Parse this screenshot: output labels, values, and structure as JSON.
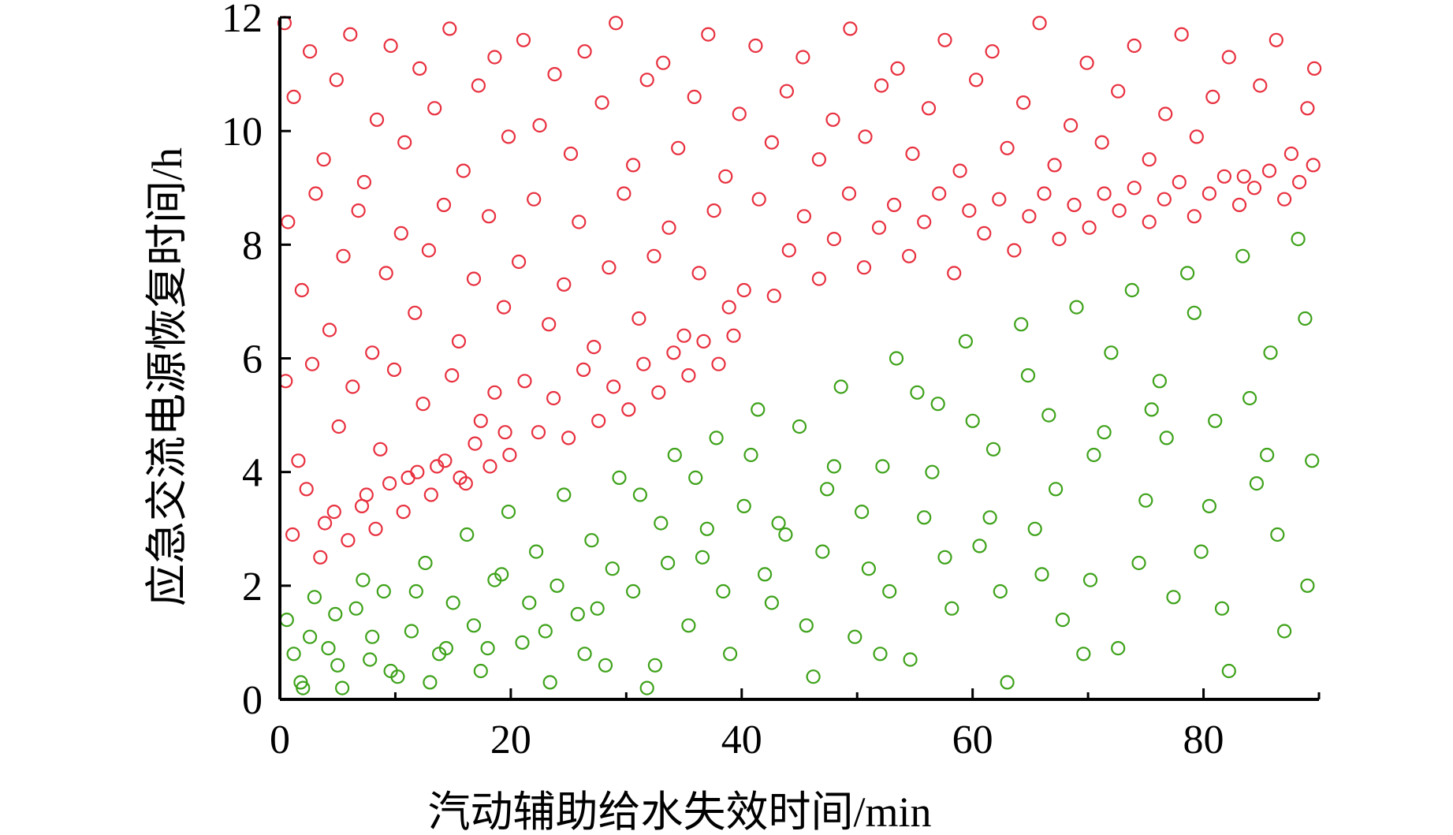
{
  "chart_data": {
    "type": "scatter",
    "title": "",
    "xlabel": "汽动辅助给水失效时间/min",
    "ylabel": "应急交流电源恢复时间/h",
    "xlim": [
      0,
      90
    ],
    "ylim": [
      0,
      12
    ],
    "xticks": [
      "0",
      "20",
      "40",
      "60",
      "80"
    ],
    "yticks": [
      "0",
      "2",
      "4",
      "6",
      "8",
      "10",
      "12"
    ],
    "grid": false,
    "legend": "none",
    "marker": "open-circle",
    "series": [
      {
        "color": "#e8303f",
        "boundary": {
          "description": "points above the line from (0, 2.0) through (40, 5.8) to (90, 8.6)"
        },
        "points": [
          [
            0.4,
            11.9
          ],
          [
            1.2,
            10.6
          ],
          [
            2.6,
            11.4
          ],
          [
            3.8,
            9.5
          ],
          [
            4.9,
            10.9
          ],
          [
            6.1,
            11.7
          ],
          [
            7.3,
            9.1
          ],
          [
            8.4,
            10.2
          ],
          [
            9.6,
            11.5
          ],
          [
            10.8,
            9.8
          ],
          [
            12.1,
            11.1
          ],
          [
            13.4,
            10.4
          ],
          [
            14.7,
            11.8
          ],
          [
            15.9,
            9.3
          ],
          [
            17.2,
            10.8
          ],
          [
            18.6,
            11.3
          ],
          [
            19.8,
            9.9
          ],
          [
            21.1,
            11.6
          ],
          [
            22.5,
            10.1
          ],
          [
            23.8,
            11.0
          ],
          [
            25.2,
            9.6
          ],
          [
            26.4,
            11.4
          ],
          [
            27.9,
            10.5
          ],
          [
            29.1,
            11.9
          ],
          [
            30.6,
            9.4
          ],
          [
            31.8,
            10.9
          ],
          [
            33.2,
            11.2
          ],
          [
            34.5,
            9.7
          ],
          [
            35.9,
            10.6
          ],
          [
            37.1,
            11.7
          ],
          [
            38.6,
            9.2
          ],
          [
            39.8,
            10.3
          ],
          [
            41.2,
            11.5
          ],
          [
            42.6,
            9.8
          ],
          [
            43.9,
            10.7
          ],
          [
            45.3,
            11.3
          ],
          [
            46.7,
            9.5
          ],
          [
            47.9,
            10.2
          ],
          [
            49.4,
            11.8
          ],
          [
            50.7,
            9.9
          ],
          [
            52.1,
            10.8
          ],
          [
            53.5,
            11.1
          ],
          [
            54.8,
            9.6
          ],
          [
            56.2,
            10.4
          ],
          [
            57.6,
            11.6
          ],
          [
            58.9,
            9.3
          ],
          [
            60.3,
            10.9
          ],
          [
            61.7,
            11.4
          ],
          [
            63.0,
            9.7
          ],
          [
            64.4,
            10.5
          ],
          [
            65.8,
            11.9
          ],
          [
            67.1,
            9.4
          ],
          [
            68.5,
            10.1
          ],
          [
            69.9,
            11.2
          ],
          [
            71.2,
            9.8
          ],
          [
            72.6,
            10.7
          ],
          [
            74.0,
            11.5
          ],
          [
            75.3,
            9.5
          ],
          [
            76.7,
            10.3
          ],
          [
            78.1,
            11.7
          ],
          [
            79.4,
            9.9
          ],
          [
            80.8,
            10.6
          ],
          [
            82.2,
            11.3
          ],
          [
            83.5,
            9.2
          ],
          [
            84.9,
            10.8
          ],
          [
            86.3,
            11.6
          ],
          [
            87.6,
            9.6
          ],
          [
            89.0,
            10.4
          ],
          [
            89.6,
            11.1
          ],
          [
            0.7,
            8.4
          ],
          [
            1.9,
            7.2
          ],
          [
            3.1,
            8.9
          ],
          [
            4.3,
            6.5
          ],
          [
            5.5,
            7.8
          ],
          [
            6.8,
            8.6
          ],
          [
            8.0,
            6.1
          ],
          [
            9.2,
            7.5
          ],
          [
            10.5,
            8.2
          ],
          [
            11.7,
            6.8
          ],
          [
            12.9,
            7.9
          ],
          [
            14.2,
            8.7
          ],
          [
            15.5,
            6.3
          ],
          [
            16.8,
            7.4
          ],
          [
            18.1,
            8.5
          ],
          [
            19.4,
            6.9
          ],
          [
            20.7,
            7.7
          ],
          [
            22.0,
            8.8
          ],
          [
            23.3,
            6.6
          ],
          [
            24.6,
            7.3
          ],
          [
            25.9,
            8.4
          ],
          [
            27.2,
            6.2
          ],
          [
            28.5,
            7.6
          ],
          [
            29.8,
            8.9
          ],
          [
            31.1,
            6.7
          ],
          [
            32.4,
            7.8
          ],
          [
            33.7,
            8.3
          ],
          [
            35.0,
            6.4
          ],
          [
            36.3,
            7.5
          ],
          [
            37.6,
            8.6
          ],
          [
            38.9,
            6.9
          ],
          [
            40.2,
            7.2
          ],
          [
            41.5,
            8.8
          ],
          [
            42.8,
            7.1
          ],
          [
            44.1,
            7.9
          ],
          [
            45.4,
            8.5
          ],
          [
            46.7,
            7.4
          ],
          [
            48.0,
            8.1
          ],
          [
            49.3,
            8.9
          ],
          [
            50.6,
            7.6
          ],
          [
            51.9,
            8.3
          ],
          [
            53.2,
            8.7
          ],
          [
            54.5,
            7.8
          ],
          [
            55.8,
            8.4
          ],
          [
            57.1,
            8.9
          ],
          [
            58.4,
            7.5
          ],
          [
            59.7,
            8.6
          ],
          [
            61.0,
            8.2
          ],
          [
            62.3,
            8.8
          ],
          [
            63.6,
            7.9
          ],
          [
            64.9,
            8.5
          ],
          [
            66.2,
            8.9
          ],
          [
            67.5,
            8.1
          ],
          [
            68.8,
            8.7
          ],
          [
            70.1,
            8.3
          ],
          [
            71.4,
            8.9
          ],
          [
            72.7,
            8.6
          ],
          [
            74.0,
            9.0
          ],
          [
            75.3,
            8.4
          ],
          [
            76.6,
            8.8
          ],
          [
            77.9,
            9.1
          ],
          [
            79.2,
            8.5
          ],
          [
            80.5,
            8.9
          ],
          [
            81.8,
            9.2
          ],
          [
            83.1,
            8.7
          ],
          [
            84.4,
            9.0
          ],
          [
            85.7,
            9.3
          ],
          [
            87.0,
            8.8
          ],
          [
            88.3,
            9.1
          ],
          [
            89.5,
            9.4
          ],
          [
            0.5,
            5.6
          ],
          [
            1.6,
            4.2
          ],
          [
            2.8,
            5.9
          ],
          [
            3.9,
            3.1
          ],
          [
            5.1,
            4.8
          ],
          [
            6.3,
            5.5
          ],
          [
            7.5,
            3.6
          ],
          [
            8.7,
            4.4
          ],
          [
            9.9,
            5.8
          ],
          [
            11.1,
            3.9
          ],
          [
            12.4,
            5.2
          ],
          [
            13.6,
            4.1
          ],
          [
            14.9,
            5.7
          ],
          [
            16.1,
            3.8
          ],
          [
            17.4,
            4.9
          ],
          [
            18.6,
            5.4
          ],
          [
            19.9,
            4.3
          ],
          [
            21.2,
            5.6
          ],
          [
            22.4,
            4.7
          ],
          [
            23.7,
            5.3
          ],
          [
            25.0,
            4.6
          ],
          [
            26.3,
            5.8
          ],
          [
            27.6,
            4.9
          ],
          [
            28.9,
            5.5
          ],
          [
            30.2,
            5.1
          ],
          [
            31.5,
            5.9
          ],
          [
            32.8,
            5.4
          ],
          [
            34.1,
            6.1
          ],
          [
            35.4,
            5.7
          ],
          [
            36.7,
            6.3
          ],
          [
            38.0,
            5.9
          ],
          [
            39.3,
            6.4
          ],
          [
            1.1,
            2.9
          ],
          [
            2.3,
            3.7
          ],
          [
            3.5,
            2.5
          ],
          [
            4.7,
            3.3
          ],
          [
            5.9,
            2.8
          ],
          [
            7.1,
            3.4
          ],
          [
            8.3,
            3.0
          ],
          [
            9.5,
            3.8
          ],
          [
            10.7,
            3.3
          ],
          [
            11.9,
            4.0
          ],
          [
            13.1,
            3.6
          ],
          [
            14.3,
            4.2
          ],
          [
            15.6,
            3.9
          ],
          [
            16.9,
            4.5
          ],
          [
            18.2,
            4.1
          ],
          [
            19.5,
            4.7
          ]
        ]
      },
      {
        "color": "#3ea21a",
        "boundary": {
          "description": "points below the line from (0, 2.0) through (40, 5.8) to (90, 8.6)"
        },
        "points": [
          [
            0.6,
            1.4
          ],
          [
            1.8,
            0.3
          ],
          [
            3.0,
            1.8
          ],
          [
            4.2,
            0.9
          ],
          [
            5.4,
            0.2
          ],
          [
            6.6,
            1.6
          ],
          [
            7.8,
            0.7
          ],
          [
            9.0,
            1.9
          ],
          [
            10.2,
            0.4
          ],
          [
            11.4,
            1.2
          ],
          [
            12.6,
            2.4
          ],
          [
            13.8,
            0.8
          ],
          [
            15.0,
            1.7
          ],
          [
            16.2,
            2.9
          ],
          [
            17.4,
            0.5
          ],
          [
            18.6,
            2.1
          ],
          [
            19.8,
            3.3
          ],
          [
            21.0,
            1.0
          ],
          [
            22.2,
            2.6
          ],
          [
            23.4,
            0.3
          ],
          [
            24.6,
            3.6
          ],
          [
            25.8,
            1.5
          ],
          [
            27.0,
            2.8
          ],
          [
            28.2,
            0.6
          ],
          [
            29.4,
            3.9
          ],
          [
            30.6,
            1.9
          ],
          [
            31.8,
            0.2
          ],
          [
            33.0,
            3.1
          ],
          [
            34.2,
            4.3
          ],
          [
            35.4,
            1.3
          ],
          [
            36.6,
            2.5
          ],
          [
            37.8,
            4.6
          ],
          [
            39.0,
            0.8
          ],
          [
            40.2,
            3.4
          ],
          [
            41.4,
            5.1
          ],
          [
            42.6,
            1.7
          ],
          [
            43.8,
            2.9
          ],
          [
            45.0,
            4.8
          ],
          [
            46.2,
            0.4
          ],
          [
            47.4,
            3.7
          ],
          [
            48.6,
            5.5
          ],
          [
            49.8,
            1.1
          ],
          [
            51.0,
            2.3
          ],
          [
            52.2,
            4.1
          ],
          [
            53.4,
            6.0
          ],
          [
            54.6,
            0.7
          ],
          [
            55.8,
            3.2
          ],
          [
            57.0,
            5.2
          ],
          [
            58.2,
            1.6
          ],
          [
            59.4,
            6.3
          ],
          [
            60.6,
            2.7
          ],
          [
            61.8,
            4.4
          ],
          [
            63.0,
            0.3
          ],
          [
            64.2,
            6.6
          ],
          [
            65.4,
            3.0
          ],
          [
            66.6,
            5.0
          ],
          [
            67.8,
            1.4
          ],
          [
            69.0,
            6.9
          ],
          [
            70.2,
            2.1
          ],
          [
            71.4,
            4.7
          ],
          [
            72.6,
            0.9
          ],
          [
            73.8,
            7.2
          ],
          [
            75.0,
            3.5
          ],
          [
            76.2,
            5.6
          ],
          [
            77.4,
            1.8
          ],
          [
            78.6,
            7.5
          ],
          [
            79.8,
            2.6
          ],
          [
            81.0,
            4.9
          ],
          [
            82.2,
            0.5
          ],
          [
            83.4,
            7.8
          ],
          [
            84.6,
            3.8
          ],
          [
            85.8,
            6.1
          ],
          [
            87.0,
            1.2
          ],
          [
            88.2,
            8.1
          ],
          [
            89.4,
            4.2
          ],
          [
            1.2,
            0.8
          ],
          [
            2.6,
            1.1
          ],
          [
            4.8,
            1.5
          ],
          [
            7.2,
            2.1
          ],
          [
            9.6,
            0.5
          ],
          [
            11.8,
            1.9
          ],
          [
            14.4,
            0.9
          ],
          [
            16.8,
            1.3
          ],
          [
            19.2,
            2.2
          ],
          [
            21.6,
            1.7
          ],
          [
            24.0,
            2.0
          ],
          [
            26.4,
            0.8
          ],
          [
            28.8,
            2.3
          ],
          [
            31.2,
            3.6
          ],
          [
            33.6,
            2.4
          ],
          [
            36.0,
            3.9
          ],
          [
            38.4,
            1.9
          ],
          [
            40.8,
            4.3
          ],
          [
            43.2,
            3.1
          ],
          [
            45.6,
            1.3
          ],
          [
            48.0,
            4.1
          ],
          [
            50.4,
            3.3
          ],
          [
            52.8,
            1.9
          ],
          [
            55.2,
            5.4
          ],
          [
            57.6,
            2.5
          ],
          [
            60.0,
            4.9
          ],
          [
            62.4,
            1.9
          ],
          [
            64.8,
            5.7
          ],
          [
            67.2,
            3.7
          ],
          [
            69.6,
            0.8
          ],
          [
            72.0,
            6.1
          ],
          [
            74.4,
            2.4
          ],
          [
            76.8,
            4.6
          ],
          [
            79.2,
            6.8
          ],
          [
            81.6,
            1.6
          ],
          [
            84.0,
            5.3
          ],
          [
            86.4,
            2.9
          ],
          [
            88.8,
            6.7
          ],
          [
            2.0,
            0.2
          ],
          [
            5.0,
            0.6
          ],
          [
            8.0,
            1.1
          ],
          [
            13.0,
            0.3
          ],
          [
            18.0,
            0.9
          ],
          [
            23.0,
            1.2
          ],
          [
            27.5,
            1.6
          ],
          [
            32.5,
            0.6
          ],
          [
            37.0,
            3.0
          ],
          [
            42.0,
            2.2
          ],
          [
            47.0,
            2.6
          ],
          [
            52.0,
            0.8
          ],
          [
            56.5,
            4.0
          ],
          [
            61.5,
            3.2
          ],
          [
            66.0,
            2.2
          ],
          [
            70.5,
            4.3
          ],
          [
            75.5,
            5.1
          ],
          [
            80.5,
            3.4
          ],
          [
            85.5,
            4.3
          ],
          [
            89.0,
            2.0
          ]
        ]
      }
    ]
  }
}
